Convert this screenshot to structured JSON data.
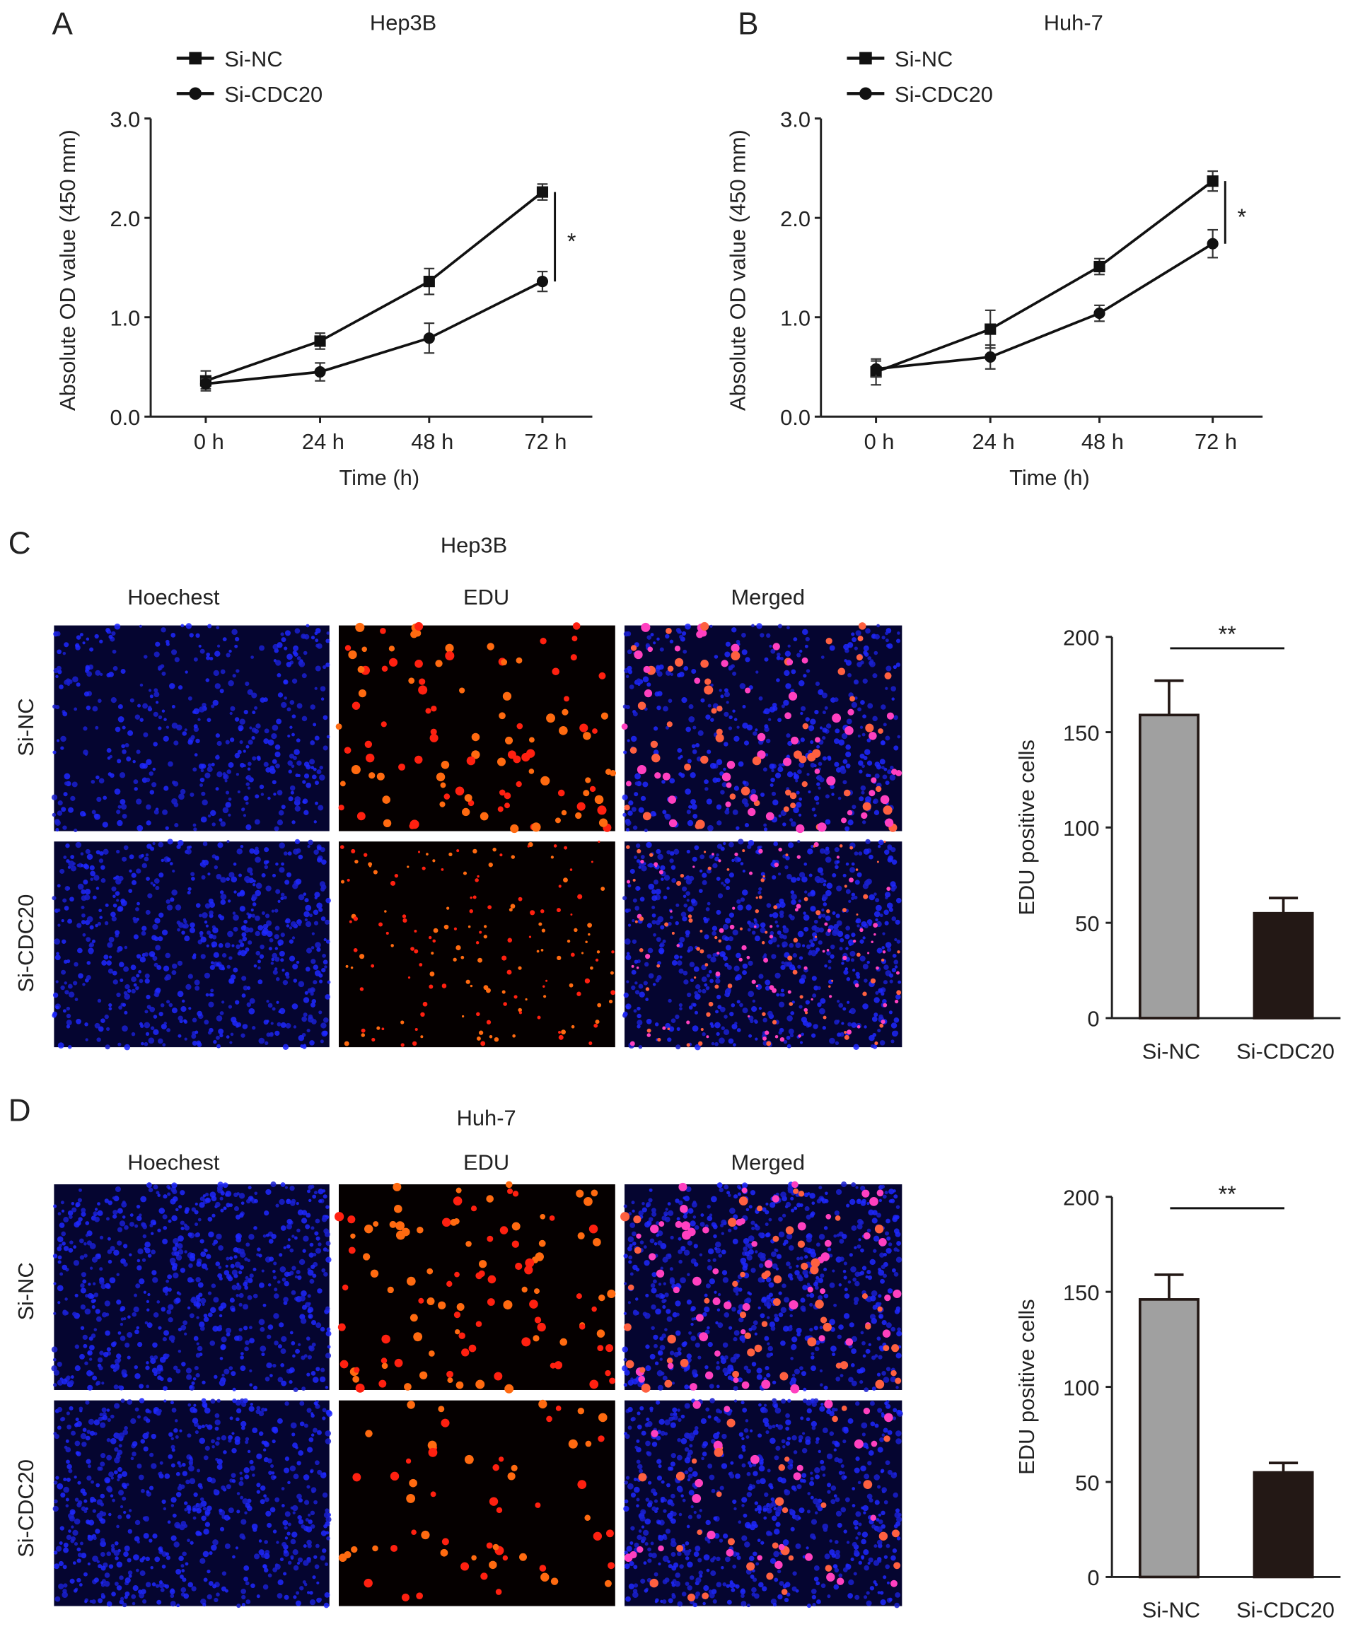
{
  "panels": {
    "A": {
      "letter": "A"
    },
    "B": {
      "letter": "B"
    },
    "C": {
      "letter": "C",
      "title": "Hep3B"
    },
    "D": {
      "letter": "D",
      "title": "Huh-7"
    }
  },
  "microscopy": {
    "columns": [
      "Hoechest",
      "EDU",
      "Merged"
    ],
    "rows": [
      "Si-NC",
      "Si-CDC20"
    ]
  },
  "colors": {
    "si_nc_bar": "#a0a0a0",
    "si_cdc20_bar": "#231815",
    "hoechst": "#1e28ff",
    "edu": "#ff3010"
  },
  "chart_data": [
    {
      "type": "line",
      "title": "Hep3B",
      "xlabel": "Time (h)",
      "ylabel": "Absolute OD value (450 mm)",
      "categories": [
        "0 h",
        "24 h",
        "48 h",
        "72 h"
      ],
      "ylim": [
        0,
        3
      ],
      "yticks": [
        "0.0",
        "1.0",
        "2.0",
        "3.0"
      ],
      "legend": "top-left",
      "significance": "*",
      "series": [
        {
          "name": "Si-NC",
          "marker": "square",
          "values": [
            0.36,
            0.76,
            1.36,
            2.26
          ],
          "errors": [
            0.1,
            0.08,
            0.13,
            0.08
          ]
        },
        {
          "name": "Si-CDC20",
          "marker": "circle",
          "values": [
            0.33,
            0.45,
            0.79,
            1.36
          ],
          "errors": [
            0.05,
            0.09,
            0.15,
            0.1
          ]
        }
      ]
    },
    {
      "type": "line",
      "title": "Huh-7",
      "xlabel": "Time (h)",
      "ylabel": "Absolute OD value (450 mm)",
      "categories": [
        "0 h",
        "24 h",
        "48 h",
        "72 h"
      ],
      "ylim": [
        0,
        3
      ],
      "yticks": [
        "0.0",
        "1.0",
        "2.0",
        "3.0"
      ],
      "legend": "top-left",
      "significance": "*",
      "series": [
        {
          "name": "Si-NC",
          "marker": "square",
          "values": [
            0.45,
            0.88,
            1.51,
            2.37
          ],
          "errors": [
            0.13,
            0.19,
            0.08,
            0.1
          ]
        },
        {
          "name": "Si-CDC20",
          "marker": "circle",
          "values": [
            0.48,
            0.6,
            1.04,
            1.74
          ],
          "errors": [
            0.08,
            0.12,
            0.08,
            0.14
          ]
        }
      ]
    },
    {
      "type": "bar",
      "title": "",
      "xlabel": "",
      "ylabel": "EDU positive cells",
      "categories": [
        "Si-NC",
        "Si-CDC20"
      ],
      "values": [
        159,
        55
      ],
      "errors": [
        18,
        8
      ],
      "ylim": [
        0,
        200
      ],
      "yticks": [
        "0",
        "50",
        "100",
        "150",
        "200"
      ],
      "significance": "**"
    },
    {
      "type": "bar",
      "title": "",
      "xlabel": "",
      "ylabel": "EDU positive cells",
      "categories": [
        "Si-NC",
        "Si-CDC20"
      ],
      "values": [
        146,
        55
      ],
      "errors": [
        13,
        5
      ],
      "ylim": [
        0,
        200
      ],
      "yticks": [
        "0",
        "50",
        "100",
        "150",
        "200"
      ],
      "significance": "**"
    }
  ]
}
